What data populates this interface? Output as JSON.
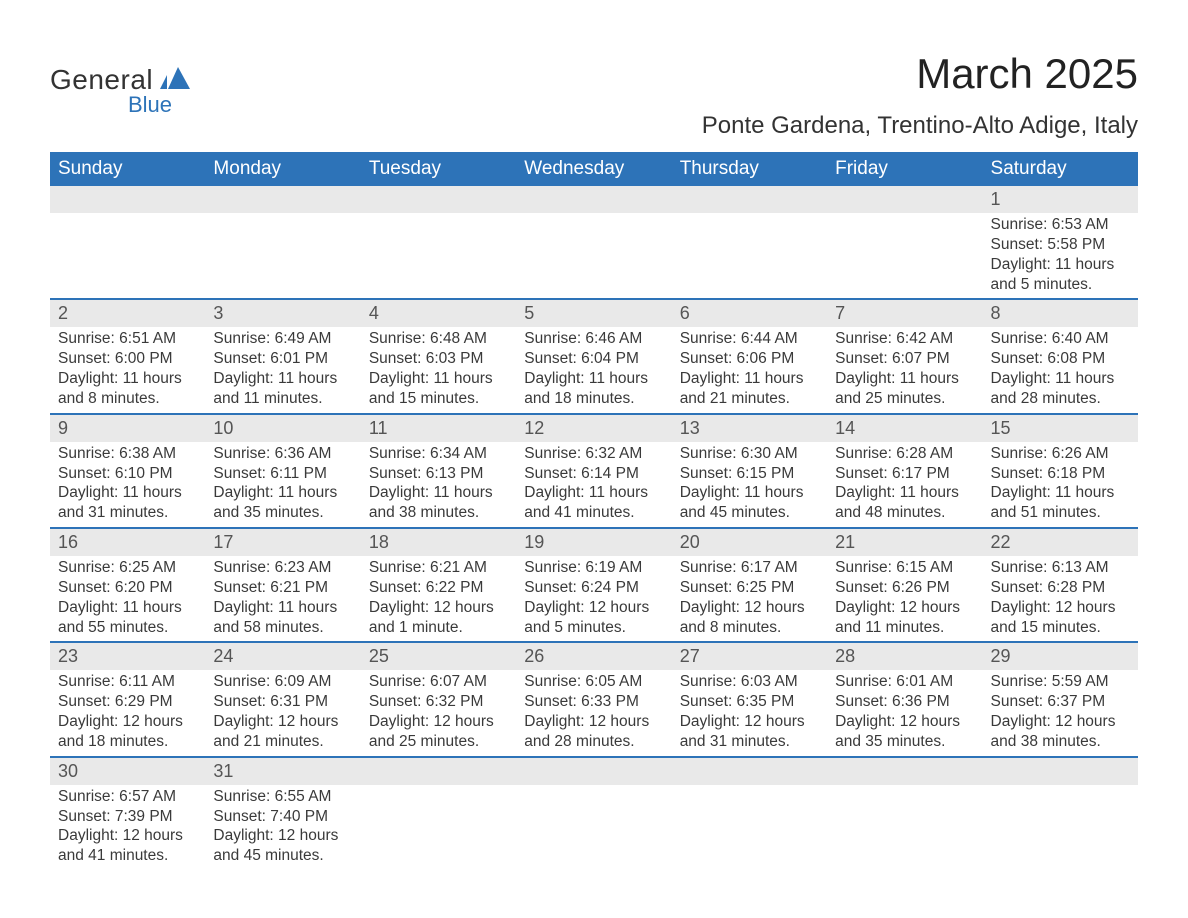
{
  "logo": {
    "primary": "General",
    "secondary": "Blue",
    "brand_color": "#2d73b8"
  },
  "title": "March 2025",
  "location": "Ponte Gardena, Trentino-Alto Adige, Italy",
  "colors": {
    "header_bg": "#2d73b8",
    "band_bg": "#e9e9e9",
    "row_border": "#2d73b8",
    "text": "#3a3a3a",
    "background": "#ffffff"
  },
  "typography": {
    "title_fontsize": 42,
    "subtitle_fontsize": 24,
    "weekday_fontsize": 19,
    "daynum_fontsize": 18,
    "body_fontsize": 15.5
  },
  "weekdays": [
    "Sunday",
    "Monday",
    "Tuesday",
    "Wednesday",
    "Thursday",
    "Friday",
    "Saturday"
  ],
  "weeks": [
    [
      {
        "day": "",
        "sunrise": "",
        "sunset": "",
        "daylight": ""
      },
      {
        "day": "",
        "sunrise": "",
        "sunset": "",
        "daylight": ""
      },
      {
        "day": "",
        "sunrise": "",
        "sunset": "",
        "daylight": ""
      },
      {
        "day": "",
        "sunrise": "",
        "sunset": "",
        "daylight": ""
      },
      {
        "day": "",
        "sunrise": "",
        "sunset": "",
        "daylight": ""
      },
      {
        "day": "",
        "sunrise": "",
        "sunset": "",
        "daylight": ""
      },
      {
        "day": "1",
        "sunrise": "Sunrise: 6:53 AM",
        "sunset": "Sunset: 5:58 PM",
        "daylight": "Daylight: 11 hours and 5 minutes."
      }
    ],
    [
      {
        "day": "2",
        "sunrise": "Sunrise: 6:51 AM",
        "sunset": "Sunset: 6:00 PM",
        "daylight": "Daylight: 11 hours and 8 minutes."
      },
      {
        "day": "3",
        "sunrise": "Sunrise: 6:49 AM",
        "sunset": "Sunset: 6:01 PM",
        "daylight": "Daylight: 11 hours and 11 minutes."
      },
      {
        "day": "4",
        "sunrise": "Sunrise: 6:48 AM",
        "sunset": "Sunset: 6:03 PM",
        "daylight": "Daylight: 11 hours and 15 minutes."
      },
      {
        "day": "5",
        "sunrise": "Sunrise: 6:46 AM",
        "sunset": "Sunset: 6:04 PM",
        "daylight": "Daylight: 11 hours and 18 minutes."
      },
      {
        "day": "6",
        "sunrise": "Sunrise: 6:44 AM",
        "sunset": "Sunset: 6:06 PM",
        "daylight": "Daylight: 11 hours and 21 minutes."
      },
      {
        "day": "7",
        "sunrise": "Sunrise: 6:42 AM",
        "sunset": "Sunset: 6:07 PM",
        "daylight": "Daylight: 11 hours and 25 minutes."
      },
      {
        "day": "8",
        "sunrise": "Sunrise: 6:40 AM",
        "sunset": "Sunset: 6:08 PM",
        "daylight": "Daylight: 11 hours and 28 minutes."
      }
    ],
    [
      {
        "day": "9",
        "sunrise": "Sunrise: 6:38 AM",
        "sunset": "Sunset: 6:10 PM",
        "daylight": "Daylight: 11 hours and 31 minutes."
      },
      {
        "day": "10",
        "sunrise": "Sunrise: 6:36 AM",
        "sunset": "Sunset: 6:11 PM",
        "daylight": "Daylight: 11 hours and 35 minutes."
      },
      {
        "day": "11",
        "sunrise": "Sunrise: 6:34 AM",
        "sunset": "Sunset: 6:13 PM",
        "daylight": "Daylight: 11 hours and 38 minutes."
      },
      {
        "day": "12",
        "sunrise": "Sunrise: 6:32 AM",
        "sunset": "Sunset: 6:14 PM",
        "daylight": "Daylight: 11 hours and 41 minutes."
      },
      {
        "day": "13",
        "sunrise": "Sunrise: 6:30 AM",
        "sunset": "Sunset: 6:15 PM",
        "daylight": "Daylight: 11 hours and 45 minutes."
      },
      {
        "day": "14",
        "sunrise": "Sunrise: 6:28 AM",
        "sunset": "Sunset: 6:17 PM",
        "daylight": "Daylight: 11 hours and 48 minutes."
      },
      {
        "day": "15",
        "sunrise": "Sunrise: 6:26 AM",
        "sunset": "Sunset: 6:18 PM",
        "daylight": "Daylight: 11 hours and 51 minutes."
      }
    ],
    [
      {
        "day": "16",
        "sunrise": "Sunrise: 6:25 AM",
        "sunset": "Sunset: 6:20 PM",
        "daylight": "Daylight: 11 hours and 55 minutes."
      },
      {
        "day": "17",
        "sunrise": "Sunrise: 6:23 AM",
        "sunset": "Sunset: 6:21 PM",
        "daylight": "Daylight: 11 hours and 58 minutes."
      },
      {
        "day": "18",
        "sunrise": "Sunrise: 6:21 AM",
        "sunset": "Sunset: 6:22 PM",
        "daylight": "Daylight: 12 hours and 1 minute."
      },
      {
        "day": "19",
        "sunrise": "Sunrise: 6:19 AM",
        "sunset": "Sunset: 6:24 PM",
        "daylight": "Daylight: 12 hours and 5 minutes."
      },
      {
        "day": "20",
        "sunrise": "Sunrise: 6:17 AM",
        "sunset": "Sunset: 6:25 PM",
        "daylight": "Daylight: 12 hours and 8 minutes."
      },
      {
        "day": "21",
        "sunrise": "Sunrise: 6:15 AM",
        "sunset": "Sunset: 6:26 PM",
        "daylight": "Daylight: 12 hours and 11 minutes."
      },
      {
        "day": "22",
        "sunrise": "Sunrise: 6:13 AM",
        "sunset": "Sunset: 6:28 PM",
        "daylight": "Daylight: 12 hours and 15 minutes."
      }
    ],
    [
      {
        "day": "23",
        "sunrise": "Sunrise: 6:11 AM",
        "sunset": "Sunset: 6:29 PM",
        "daylight": "Daylight: 12 hours and 18 minutes."
      },
      {
        "day": "24",
        "sunrise": "Sunrise: 6:09 AM",
        "sunset": "Sunset: 6:31 PM",
        "daylight": "Daylight: 12 hours and 21 minutes."
      },
      {
        "day": "25",
        "sunrise": "Sunrise: 6:07 AM",
        "sunset": "Sunset: 6:32 PM",
        "daylight": "Daylight: 12 hours and 25 minutes."
      },
      {
        "day": "26",
        "sunrise": "Sunrise: 6:05 AM",
        "sunset": "Sunset: 6:33 PM",
        "daylight": "Daylight: 12 hours and 28 minutes."
      },
      {
        "day": "27",
        "sunrise": "Sunrise: 6:03 AM",
        "sunset": "Sunset: 6:35 PM",
        "daylight": "Daylight: 12 hours and 31 minutes."
      },
      {
        "day": "28",
        "sunrise": "Sunrise: 6:01 AM",
        "sunset": "Sunset: 6:36 PM",
        "daylight": "Daylight: 12 hours and 35 minutes."
      },
      {
        "day": "29",
        "sunrise": "Sunrise: 5:59 AM",
        "sunset": "Sunset: 6:37 PM",
        "daylight": "Daylight: 12 hours and 38 minutes."
      }
    ],
    [
      {
        "day": "30",
        "sunrise": "Sunrise: 6:57 AM",
        "sunset": "Sunset: 7:39 PM",
        "daylight": "Daylight: 12 hours and 41 minutes."
      },
      {
        "day": "31",
        "sunrise": "Sunrise: 6:55 AM",
        "sunset": "Sunset: 7:40 PM",
        "daylight": "Daylight: 12 hours and 45 minutes."
      },
      {
        "day": "",
        "sunrise": "",
        "sunset": "",
        "daylight": ""
      },
      {
        "day": "",
        "sunrise": "",
        "sunset": "",
        "daylight": ""
      },
      {
        "day": "",
        "sunrise": "",
        "sunset": "",
        "daylight": ""
      },
      {
        "day": "",
        "sunrise": "",
        "sunset": "",
        "daylight": ""
      },
      {
        "day": "",
        "sunrise": "",
        "sunset": "",
        "daylight": ""
      }
    ]
  ]
}
